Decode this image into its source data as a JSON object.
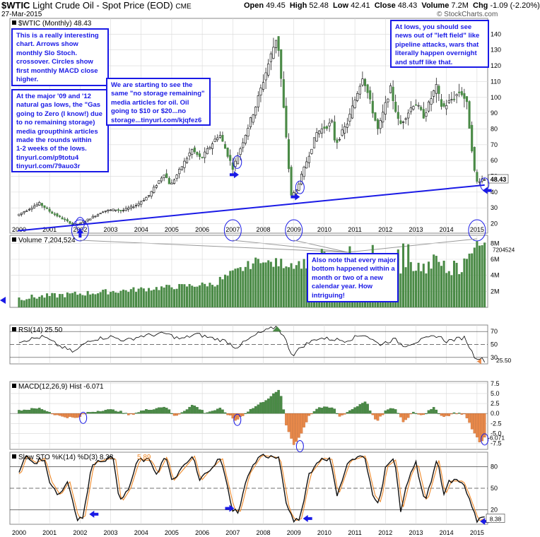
{
  "header": {
    "symbol": "$WTIC",
    "name": "Light Crude Oil - Spot Price (EOD)",
    "exchange": "CME",
    "date": "27-Mar-2015",
    "watermark": "© StockCharts.com",
    "open_label": "Open",
    "open": "49.45",
    "high_label": "High",
    "high": "52.48",
    "low_label": "Low",
    "low": "42.41",
    "close_label": "Close",
    "close": "48.43",
    "volume_label": "Volume",
    "volume": "7.2M",
    "chg_label": "Chg",
    "chg": "-1.09 (-2.20%)"
  },
  "colors": {
    "up": "#4a8a46",
    "down": "#e8894a",
    "annot": "#1a1ae6",
    "grid": "#d8d8d8",
    "stoK": "#111111",
    "stoD": "#f08a2a"
  },
  "notes": {
    "n1": [
      "This is a really interesting",
      "chart. Arrows show",
      "monthly Slo Stoch.",
      "crossover.  Circles show",
      "first monthly MACD close",
      "higher."
    ],
    "n2": [
      "At the major '09 and '12",
      "natural gas lows, the \"Gas",
      "going to Zero (I know!) due",
      "to no remaining storage)",
      "media groupthink articles",
      "made the rounds within",
      "1-2 weeks of the lows.",
      "tinyurl.com/p9totu4",
      "tinyurl.com/79auo3r"
    ],
    "n3": [
      "We are starting to see the",
      "same \"no storage remaining\"",
      "media articles for oil. Oil",
      "going to $10 or $20...no",
      "storage...tinyurl.com/kjqfez6"
    ],
    "n4": [
      "At lows, you should see",
      "news out of \"left field\" like",
      "pipeline attacks, wars that",
      "literally happen overnight",
      "and stuff like that."
    ],
    "n5": [
      "Also note that every major",
      "bottom happened within a",
      "month or two of a new",
      "calendar year.  How",
      "intriguing!"
    ]
  },
  "chart_data": {
    "type": "candlestick",
    "x": [
      "2000",
      "2001",
      "2002",
      "2003",
      "2004",
      "2005",
      "2006",
      "2007",
      "2008",
      "2009",
      "2010",
      "2011",
      "2012",
      "2013",
      "2014",
      "2015"
    ],
    "price_panel": {
      "label": "$WTIC (Monthly)",
      "last": "48.43",
      "ylim": [
        14,
        150
      ],
      "ticks": [
        20,
        30,
        40,
        50,
        60,
        70,
        80,
        90,
        100,
        110,
        120,
        130,
        140
      ],
      "series": [
        {
          "name": "$WTIC",
          "anchors": [
            [
              1999.95,
              25
            ],
            [
              2000.7,
              33
            ],
            [
              2001.1,
              27
            ],
            [
              2001.8,
              19.5
            ],
            [
              2002.05,
              20
            ],
            [
              2002.8,
              28
            ],
            [
              2003.2,
              29
            ],
            [
              2003.4,
              28
            ],
            [
              2003.9,
              32
            ],
            [
              2004.3,
              38
            ],
            [
              2004.8,
              52
            ],
            [
              2005.0,
              44
            ],
            [
              2005.7,
              67
            ],
            [
              2006.0,
              61
            ],
            [
              2006.6,
              77
            ],
            [
              2007.05,
              55
            ],
            [
              2007.8,
              95
            ],
            [
              2008.5,
              140
            ],
            [
              2008.95,
              38
            ],
            [
              2009.1,
              40
            ],
            [
              2009.8,
              78
            ],
            [
              2010.3,
              84
            ],
            [
              2010.4,
              70
            ],
            [
              2010.8,
              84
            ],
            [
              2011.3,
              114
            ],
            [
              2011.8,
              79
            ],
            [
              2012.2,
              106
            ],
            [
              2012.5,
              82
            ],
            [
              2013.0,
              97
            ],
            [
              2013.3,
              88
            ],
            [
              2013.7,
              107
            ],
            [
              2013.9,
              93
            ],
            [
              2014.5,
              104
            ],
            [
              2014.7,
              97
            ],
            [
              2015.0,
              46
            ],
            [
              2015.2,
              48.4
            ]
          ]
        }
      ],
      "trendline": {
        "from": [
          1999.95,
          15.5
        ],
        "to": [
          2015.25,
          44.5
        ]
      }
    },
    "volume_panel": {
      "label": "Volume",
      "value": "7,204,524",
      "last": "7204524",
      "ticks": [
        "2M",
        "4M",
        "6M",
        "8M"
      ],
      "ylim": [
        0,
        9
      ]
    },
    "rsi_panel": {
      "label": "RSI(14)",
      "value": "25.50",
      "ticks": [
        30,
        50,
        70
      ],
      "ylim": [
        20,
        80
      ],
      "series": [
        {
          "name": "RSI(14)",
          "anchors": [
            [
              2000,
              55
            ],
            [
              2000.8,
              62
            ],
            [
              2001.3,
              48
            ],
            [
              2001.8,
              38
            ],
            [
              2002.3,
              57
            ],
            [
              2003,
              62
            ],
            [
              2003.5,
              56
            ],
            [
              2004,
              63
            ],
            [
              2004.8,
              67
            ],
            [
              2005.3,
              58
            ],
            [
              2005.8,
              66
            ],
            [
              2006.3,
              60
            ],
            [
              2006.8,
              55
            ],
            [
              2007.1,
              45
            ],
            [
              2007.8,
              66
            ],
            [
              2008.45,
              78
            ],
            [
              2008.7,
              60
            ],
            [
              2008.95,
              33
            ],
            [
              2009.3,
              48
            ],
            [
              2009.8,
              60
            ],
            [
              2010.3,
              58
            ],
            [
              2010.7,
              56
            ],
            [
              2011.3,
              66
            ],
            [
              2011.8,
              50
            ],
            [
              2012.3,
              58
            ],
            [
              2012.6,
              48
            ],
            [
              2013.2,
              57
            ],
            [
              2013.7,
              64
            ],
            [
              2014.0,
              55
            ],
            [
              2014.6,
              61
            ],
            [
              2014.9,
              32
            ],
            [
              2015.25,
              25.5
            ]
          ]
        }
      ]
    },
    "macd_panel": {
      "label": "MACD(12,26,9) Hist",
      "value": "-6.071",
      "last": "-6.071",
      "ticks": [
        "7.5",
        "5.0",
        "2.5",
        "0.0",
        "-2.5",
        "-5.0",
        "-7.5"
      ],
      "ylim": [
        -9,
        8
      ]
    },
    "sto_panel": {
      "label": "Slow STO %K(14) %D(3)",
      "k": "8.38",
      "d": "5.89",
      "last": "8.38",
      "ticks": [
        20,
        50,
        80
      ],
      "ylim": [
        0,
        100
      ]
    }
  }
}
